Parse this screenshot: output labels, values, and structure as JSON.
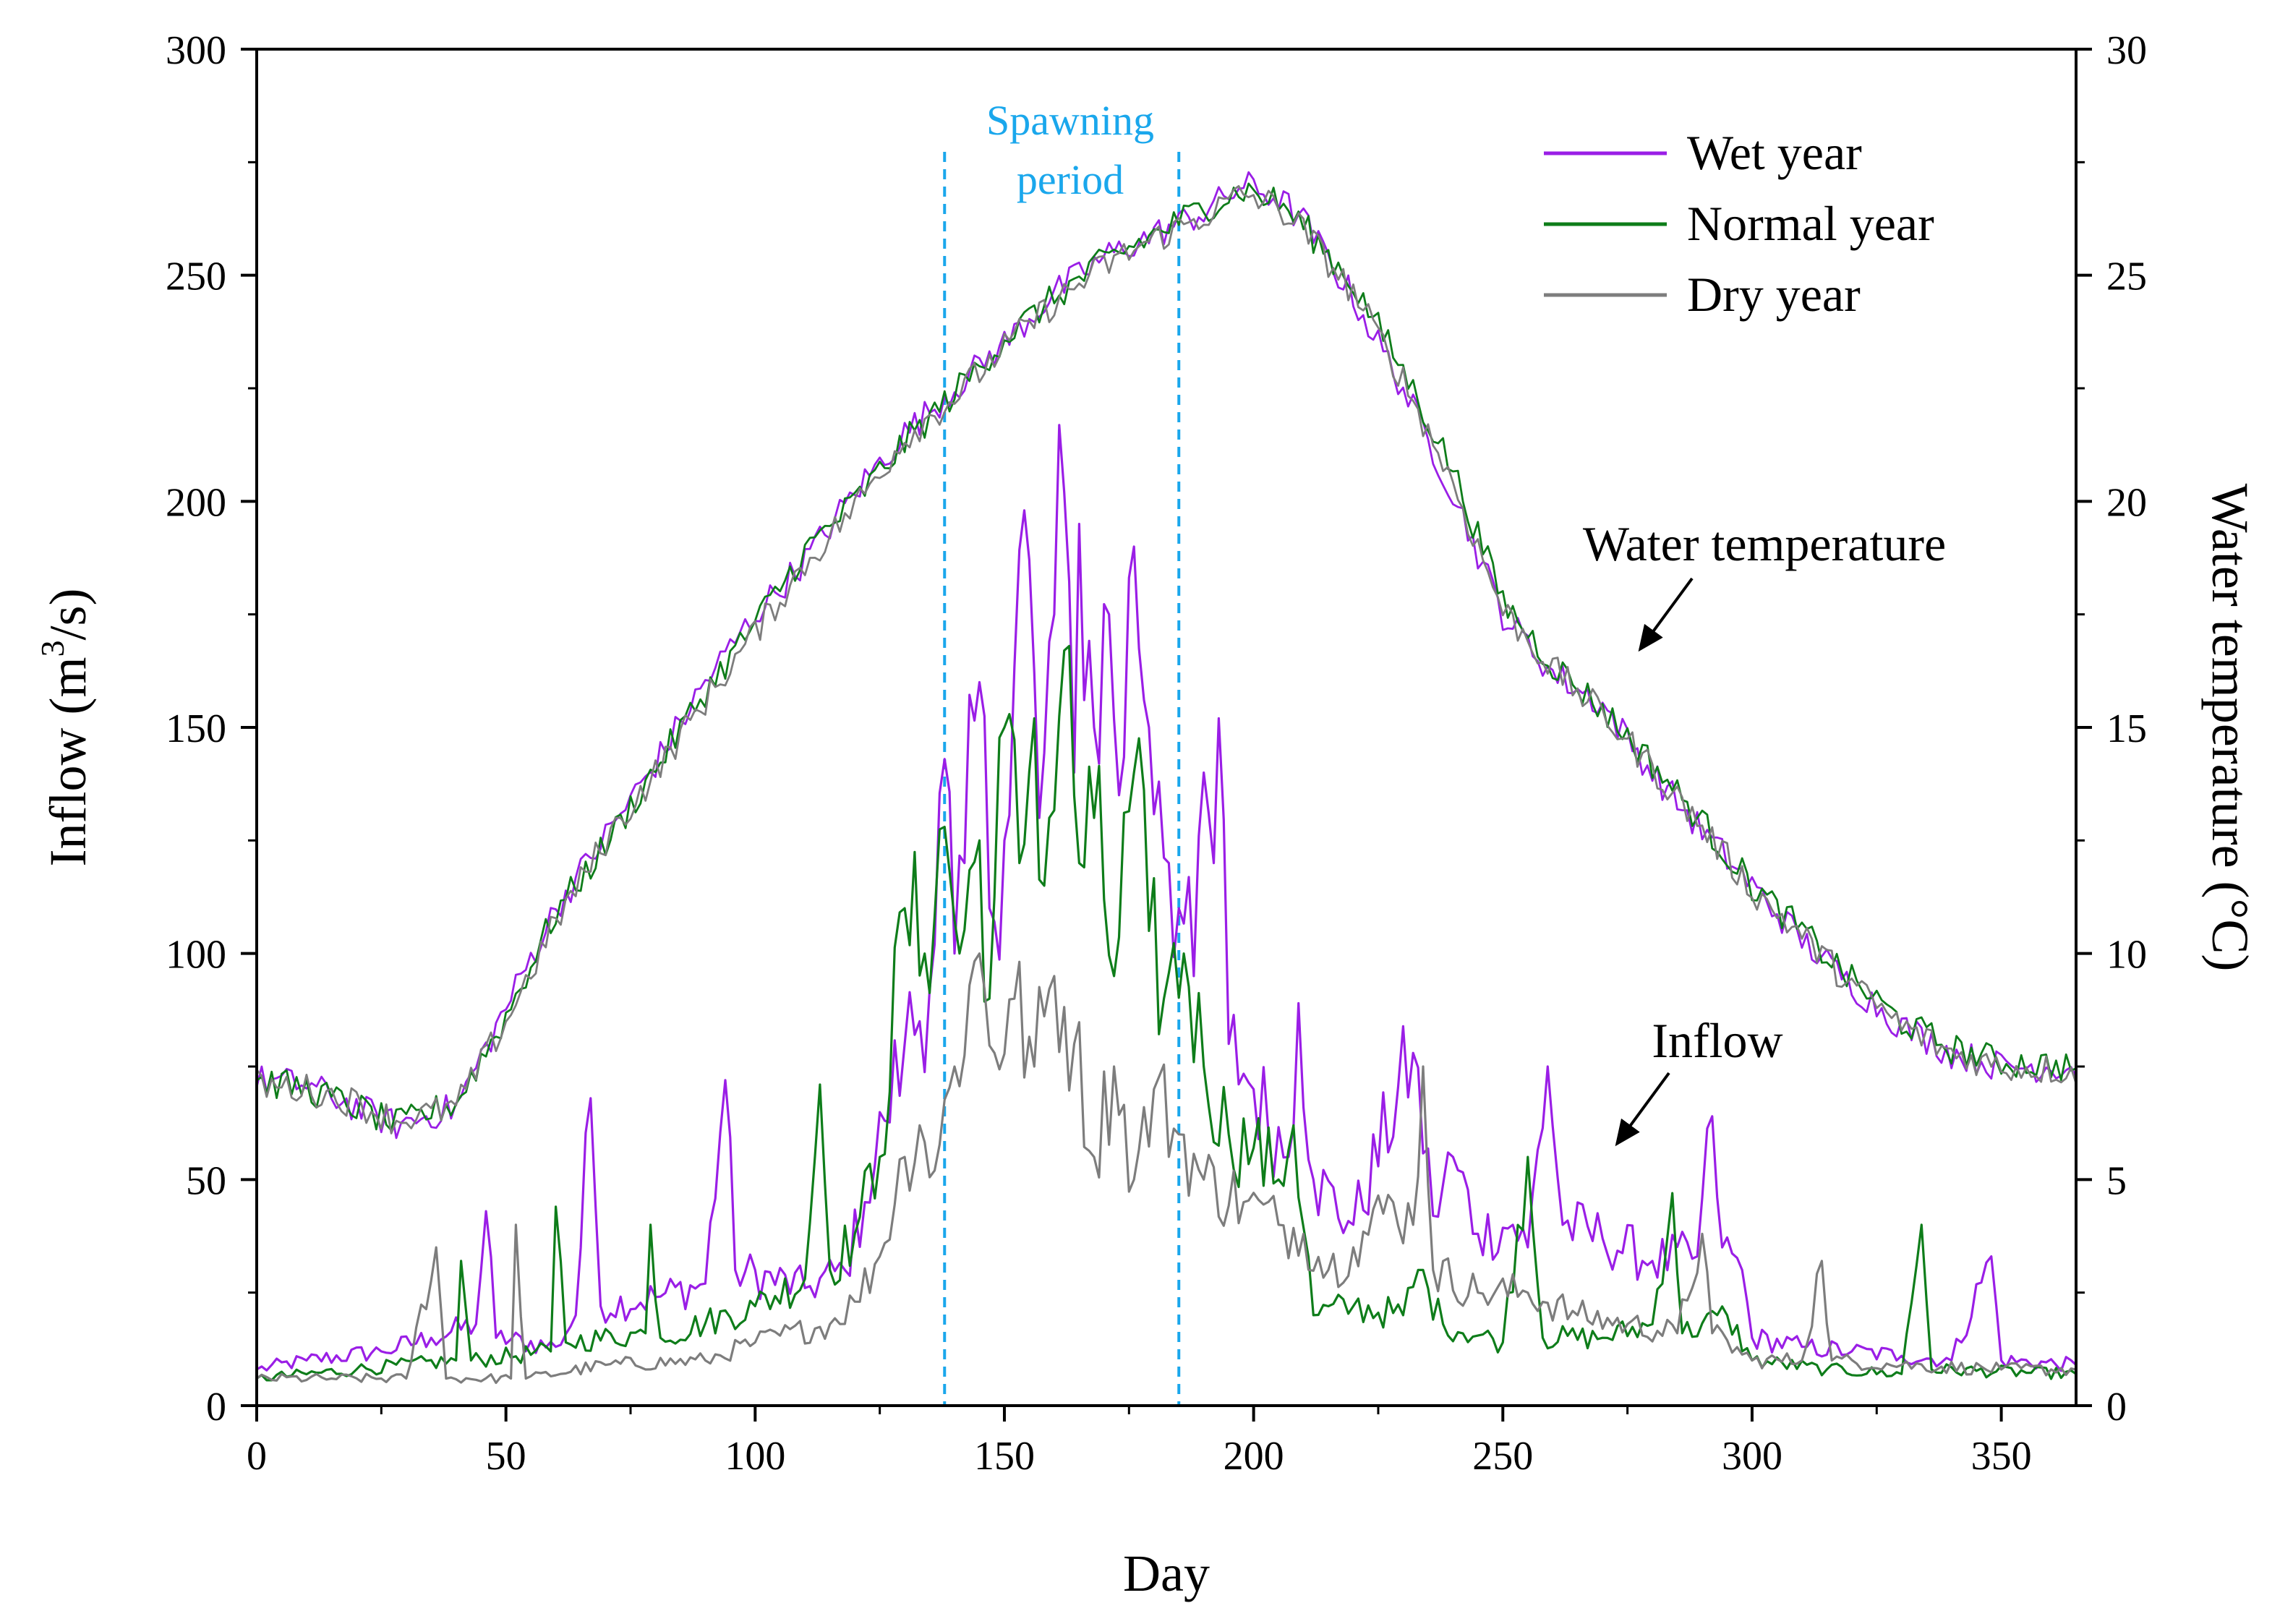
{
  "chart_data": {
    "type": "line",
    "title": "",
    "xlabel": "Day",
    "ylabel": "Inflow (m",
    "ylabel_sup": "3",
    "ylabel_tail": "/s)",
    "y2label": "Water temperature (°C)",
    "xlim": [
      0,
      365
    ],
    "ylim": [
      0,
      300
    ],
    "y2lim": [
      0,
      30
    ],
    "xticks": [
      0,
      50,
      100,
      150,
      200,
      250,
      300,
      350
    ],
    "yticks": [
      0,
      50,
      100,
      150,
      200,
      250,
      300
    ],
    "y2ticks": [
      0,
      5,
      10,
      15,
      20,
      25,
      30
    ],
    "grid": false,
    "legend_position": "top-right",
    "colors": {
      "wet": "#9a1ee6",
      "normal": "#0e7d1a",
      "dry": "#7d7d7d",
      "spawn": "#1aa7ec"
    },
    "spawning_period": {
      "start": 138,
      "end": 185,
      "label_line1": "Spawning",
      "label_line2": "period"
    },
    "annotations": {
      "temperature": "Water temperature",
      "inflow": "Inflow"
    },
    "temperature_series": [
      {
        "name": "Wet year",
        "days": [
          0,
          10,
          20,
          28,
          40,
          50,
          60,
          70,
          80,
          90,
          100,
          110,
          120,
          130,
          140,
          150,
          160,
          170,
          180,
          190,
          198,
          205,
          210,
          220,
          230,
          240,
          250,
          260,
          270,
          280,
          290,
          300,
          310,
          320,
          330,
          340,
          350,
          365
        ],
        "values": [
          7.2,
          7.1,
          6.6,
          6.2,
          6.6,
          8.8,
          11.0,
          12.6,
          14.2,
          16.0,
          17.5,
          18.7,
          20.2,
          21.5,
          22.5,
          23.5,
          24.6,
          25.4,
          25.9,
          26.4,
          27.0,
          26.7,
          26.2,
          24.5,
          22.5,
          20.2,
          17.5,
          16.2,
          15.5,
          14.0,
          12.7,
          11.5,
          10.3,
          9.3,
          8.4,
          7.8,
          7.5,
          7.5
        ]
      },
      {
        "name": "Normal year",
        "days": [
          0,
          10,
          20,
          28,
          40,
          50,
          60,
          70,
          80,
          90,
          100,
          110,
          120,
          130,
          140,
          150,
          160,
          170,
          180,
          190,
          198,
          205,
          210,
          220,
          230,
          240,
          250,
          260,
          270,
          280,
          290,
          300,
          310,
          320,
          330,
          340,
          350,
          365
        ],
        "values": [
          7.2,
          7.0,
          6.6,
          6.2,
          6.7,
          8.6,
          10.9,
          12.4,
          14.1,
          15.8,
          17.3,
          18.9,
          20.0,
          21.3,
          22.4,
          23.6,
          24.5,
          25.3,
          25.9,
          26.5,
          26.9,
          26.6,
          26.1,
          24.8,
          22.9,
          20.7,
          17.8,
          16.4,
          15.4,
          14.2,
          12.9,
          11.5,
          10.5,
          9.4,
          8.5,
          7.9,
          7.6,
          7.5
        ]
      },
      {
        "name": "Dry year",
        "days": [
          0,
          10,
          20,
          28,
          40,
          50,
          60,
          70,
          80,
          90,
          100,
          110,
          120,
          130,
          140,
          150,
          160,
          170,
          180,
          190,
          198,
          205,
          210,
          220,
          230,
          240,
          250,
          260,
          270,
          280,
          290,
          300,
          310,
          320,
          330,
          340,
          350,
          365
        ],
        "values": [
          7.1,
          7.0,
          6.7,
          6.3,
          6.6,
          8.5,
          10.7,
          12.5,
          14.0,
          15.6,
          17.1,
          18.6,
          19.9,
          21.4,
          22.3,
          23.4,
          24.4,
          25.2,
          25.8,
          26.3,
          26.8,
          26.5,
          26.0,
          24.6,
          22.7,
          20.4,
          17.6,
          16.3,
          15.3,
          14.1,
          12.8,
          11.4,
          10.4,
          9.3,
          8.4,
          7.8,
          7.5,
          7.4
        ]
      }
    ],
    "inflow_series": [
      {
        "name": "Wet year",
        "points": [
          [
            0,
            8
          ],
          [
            10,
            10
          ],
          [
            25,
            12
          ],
          [
            35,
            15
          ],
          [
            44,
            18
          ],
          [
            46,
            43
          ],
          [
            48,
            15
          ],
          [
            60,
            13
          ],
          [
            64,
            20
          ],
          [
            67,
            68
          ],
          [
            69,
            22
          ],
          [
            80,
            24
          ],
          [
            90,
            27
          ],
          [
            94,
            72
          ],
          [
            96,
            30
          ],
          [
            110,
            26
          ],
          [
            118,
            30
          ],
          [
            122,
            45
          ],
          [
            126,
            63
          ],
          [
            130,
            80
          ],
          [
            135,
            92
          ],
          [
            138,
            143
          ],
          [
            140,
            100
          ],
          [
            142,
            120
          ],
          [
            145,
            160
          ],
          [
            147,
            110
          ],
          [
            150,
            125
          ],
          [
            154,
            198
          ],
          [
            157,
            130
          ],
          [
            160,
            175
          ],
          [
            162,
            202
          ],
          [
            164,
            140
          ],
          [
            165,
            195
          ],
          [
            168,
            150
          ],
          [
            171,
            175
          ],
          [
            173,
            135
          ],
          [
            176,
            190
          ],
          [
            179,
            150
          ],
          [
            181,
            138
          ],
          [
            183,
            120
          ],
          [
            185,
            110
          ],
          [
            188,
            95
          ],
          [
            190,
            140
          ],
          [
            192,
            120
          ],
          [
            193,
            152
          ],
          [
            195,
            80
          ],
          [
            200,
            70
          ],
          [
            207,
            55
          ],
          [
            209,
            89
          ],
          [
            212,
            50
          ],
          [
            220,
            40
          ],
          [
            232,
            78
          ],
          [
            236,
            42
          ],
          [
            240,
            55
          ],
          [
            245,
            38
          ],
          [
            252,
            40
          ],
          [
            255,
            35
          ],
          [
            259,
            75
          ],
          [
            262,
            40
          ],
          [
            270,
            37
          ],
          [
            280,
            32
          ],
          [
            289,
            33
          ],
          [
            292,
            64
          ],
          [
            294,
            35
          ],
          [
            298,
            30
          ],
          [
            300,
            15
          ],
          [
            310,
            13
          ],
          [
            320,
            12
          ],
          [
            330,
            11
          ],
          [
            340,
            10
          ],
          [
            348,
            33
          ],
          [
            350,
            10
          ],
          [
            365,
            9
          ]
        ]
      },
      {
        "name": "Normal year",
        "points": [
          [
            0,
            6
          ],
          [
            20,
            8
          ],
          [
            40,
            10
          ],
          [
            41,
            32
          ],
          [
            43,
            10
          ],
          [
            59,
            12
          ],
          [
            60,
            44
          ],
          [
            62,
            14
          ],
          [
            78,
            16
          ],
          [
            79,
            40
          ],
          [
            81,
            15
          ],
          [
            100,
            22
          ],
          [
            110,
            28
          ],
          [
            113,
            71
          ],
          [
            115,
            30
          ],
          [
            120,
            38
          ],
          [
            125,
            55
          ],
          [
            130,
            110
          ],
          [
            134,
            100
          ],
          [
            138,
            128
          ],
          [
            141,
            100
          ],
          [
            145,
            125
          ],
          [
            147,
            90
          ],
          [
            150,
            150
          ],
          [
            153,
            120
          ],
          [
            156,
            152
          ],
          [
            158,
            115
          ],
          [
            162,
            167
          ],
          [
            165,
            120
          ],
          [
            168,
            130
          ],
          [
            172,
            95
          ],
          [
            176,
            140
          ],
          [
            179,
            105
          ],
          [
            182,
            90
          ],
          [
            186,
            100
          ],
          [
            190,
            75
          ],
          [
            195,
            60
          ],
          [
            200,
            57
          ],
          [
            205,
            50
          ],
          [
            208,
            62
          ],
          [
            212,
            20
          ],
          [
            220,
            22
          ],
          [
            230,
            20
          ],
          [
            233,
            30
          ],
          [
            238,
            18
          ],
          [
            250,
            14
          ],
          [
            255,
            55
          ],
          [
            258,
            15
          ],
          [
            270,
            15
          ],
          [
            280,
            18
          ],
          [
            284,
            47
          ],
          [
            286,
            16
          ],
          [
            295,
            20
          ],
          [
            300,
            10
          ],
          [
            315,
            8
          ],
          [
            330,
            7
          ],
          [
            334,
            40
          ],
          [
            336,
            8
          ],
          [
            365,
            7
          ]
        ]
      },
      {
        "name": "Dry year",
        "points": [
          [
            0,
            6
          ],
          [
            15,
            6
          ],
          [
            30,
            6
          ],
          [
            36,
            35
          ],
          [
            38,
            6
          ],
          [
            51,
            6
          ],
          [
            52,
            40
          ],
          [
            54,
            6
          ],
          [
            70,
            9
          ],
          [
            90,
            10
          ],
          [
            100,
            14
          ],
          [
            115,
            18
          ],
          [
            120,
            23
          ],
          [
            125,
            33
          ],
          [
            130,
            55
          ],
          [
            133,
            62
          ],
          [
            136,
            52
          ],
          [
            140,
            75
          ],
          [
            145,
            100
          ],
          [
            148,
            78
          ],
          [
            152,
            90
          ],
          [
            156,
            75
          ],
          [
            160,
            95
          ],
          [
            164,
            80
          ],
          [
            168,
            55
          ],
          [
            172,
            75
          ],
          [
            176,
            50
          ],
          [
            180,
            70
          ],
          [
            185,
            60
          ],
          [
            190,
            50
          ],
          [
            198,
            45
          ],
          [
            205,
            40
          ],
          [
            210,
            38
          ],
          [
            215,
            30
          ],
          [
            220,
            35
          ],
          [
            228,
            45
          ],
          [
            232,
            40
          ],
          [
            234,
            75
          ],
          [
            236,
            30
          ],
          [
            245,
            25
          ],
          [
            255,
            25
          ],
          [
            265,
            20
          ],
          [
            275,
            18
          ],
          [
            285,
            16
          ],
          [
            290,
            38
          ],
          [
            292,
            16
          ],
          [
            300,
            10
          ],
          [
            310,
            10
          ],
          [
            314,
            32
          ],
          [
            316,
            10
          ],
          [
            330,
            9
          ],
          [
            350,
            8
          ],
          [
            365,
            8
          ]
        ]
      }
    ],
    "legend": [
      {
        "label": "Wet year",
        "key": "wet"
      },
      {
        "label": "Normal year",
        "key": "normal"
      },
      {
        "label": "Dry year",
        "key": "dry"
      }
    ]
  }
}
